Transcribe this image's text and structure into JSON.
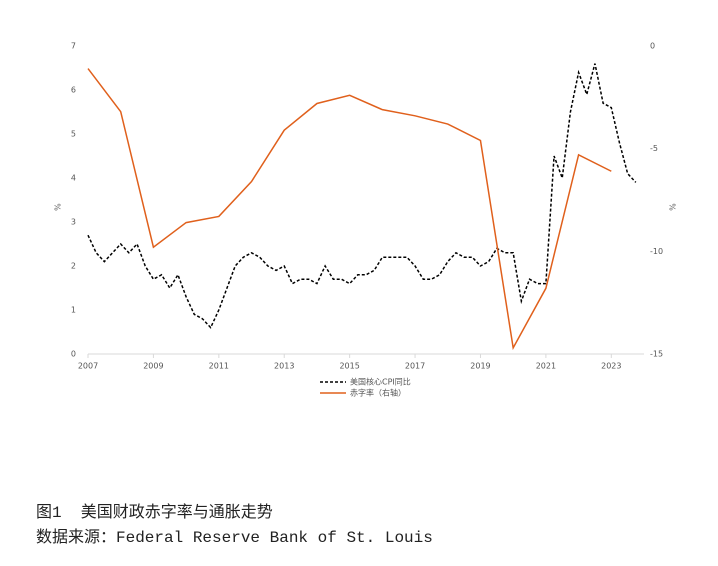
{
  "chart_data": {
    "type": "line",
    "series": [
      {
        "name": "美国核心CPI同比",
        "color": "#000000",
        "dash": true,
        "axis": "y",
        "x": [
          2007,
          2007.25,
          2007.5,
          2007.75,
          2008,
          2008.25,
          2008.5,
          2008.75,
          2009,
          2009.25,
          2009.5,
          2009.75,
          2010,
          2010.25,
          2010.5,
          2010.75,
          2011,
          2011.25,
          2011.5,
          2011.75,
          2012,
          2012.25,
          2012.5,
          2012.75,
          2013,
          2013.25,
          2013.5,
          2013.75,
          2014,
          2014.25,
          2014.5,
          2014.75,
          2015,
          2015.25,
          2015.5,
          2015.75,
          2016,
          2016.25,
          2016.5,
          2016.75,
          2017,
          2017.25,
          2017.5,
          2017.75,
          2018,
          2018.25,
          2018.5,
          2018.75,
          2019,
          2019.25,
          2019.5,
          2019.75,
          2020,
          2020.25,
          2020.5,
          2020.75,
          2021,
          2021.25,
          2021.5,
          2021.75,
          2022,
          2022.25,
          2022.5,
          2022.75,
          2023,
          2023.25,
          2023.5,
          2023.75
        ],
        "values": [
          2.7,
          2.3,
          2.1,
          2.3,
          2.5,
          2.3,
          2.5,
          2.0,
          1.7,
          1.8,
          1.5,
          1.8,
          1.3,
          0.9,
          0.8,
          0.6,
          1.0,
          1.5,
          2.0,
          2.2,
          2.3,
          2.2,
          2.0,
          1.9,
          2.0,
          1.6,
          1.7,
          1.7,
          1.6,
          2.0,
          1.7,
          1.7,
          1.6,
          1.8,
          1.8,
          1.9,
          2.2,
          2.2,
          2.2,
          2.2,
          2.0,
          1.7,
          1.7,
          1.8,
          2.1,
          2.3,
          2.2,
          2.2,
          2.0,
          2.1,
          2.4,
          2.3,
          2.3,
          1.2,
          1.7,
          1.6,
          1.6,
          4.5,
          4.0,
          5.5,
          6.4,
          5.9,
          6.6,
          5.7,
          5.6,
          4.8,
          4.1,
          3.9
        ]
      },
      {
        "name": "赤字率（右轴）",
        "color": "#e0601c",
        "dash": false,
        "axis": "y2",
        "x": [
          2007,
          2008,
          2009,
          2010,
          2011,
          2012,
          2013,
          2014,
          2015,
          2016,
          2017,
          2018,
          2019,
          2020,
          2021,
          2022,
          2023
        ],
        "values": [
          -1.1,
          -3.2,
          -9.8,
          -8.6,
          -8.3,
          -6.6,
          -4.1,
          -2.8,
          -2.4,
          -3.1,
          -3.4,
          -3.8,
          -4.6,
          -14.7,
          -11.8,
          -5.3,
          -6.1
        ]
      }
    ],
    "xlim": [
      2007,
      2024
    ],
    "xticks": [
      2007,
      2009,
      2011,
      2013,
      2015,
      2017,
      2019,
      2021,
      2023
    ],
    "ylim": [
      0,
      7
    ],
    "yticks": [
      0,
      1,
      2,
      3,
      4,
      5,
      6,
      7
    ],
    "ylabel": "%",
    "y2lim": [
      -15,
      0
    ],
    "y2ticks": [
      0,
      -5,
      -10,
      -15
    ],
    "y2label": "%",
    "legend": "bottom"
  },
  "caption": {
    "title": "图1  美国财政赤字率与通胀走势",
    "source": "数据来源：Federal Reserve Bank of St. Louis"
  }
}
